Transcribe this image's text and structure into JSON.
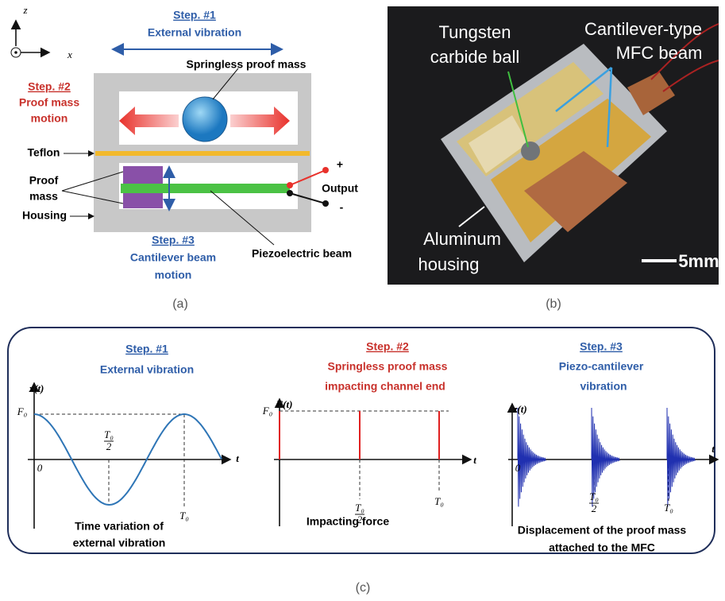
{
  "panel_a": {
    "axis_z": "z",
    "axis_x": "x",
    "step1": {
      "label": "Step. #1",
      "lines": [
        "External vibration"
      ]
    },
    "proof_mass_label": "Springless proof mass",
    "step2": {
      "label": "Step. #2",
      "lines": [
        "Proof mass",
        "motion"
      ]
    },
    "teflon": "Teflon",
    "proof_mass": [
      "Proof",
      "mass"
    ],
    "housing": "Housing",
    "output": "Output",
    "plus": "+",
    "minus": "-",
    "step3": {
      "label": "Step. #3",
      "lines": [
        "Cantilever beam",
        "motion"
      ]
    },
    "piezo_beam": "Piezoelectric beam",
    "caption": "(a)"
  },
  "panel_b": {
    "ball": [
      "Tungsten",
      "carbide ball"
    ],
    "beam": [
      "Cantilever-type",
      "MFC beam"
    ],
    "housing": [
      "Aluminum",
      "housing"
    ],
    "scale": "5mm",
    "caption": "(b)"
  },
  "panel_c": {
    "plot1": {
      "step": "Step. #1",
      "lines": [
        "External vibration"
      ],
      "ylabel": "x(t)",
      "f0": "F₀",
      "origin": "0",
      "half_num": "T₀",
      "half_den": "2",
      "t0": "T₀",
      "xlabel": "t",
      "caption": [
        "Time variation of",
        "external vibration"
      ]
    },
    "plot2": {
      "step": "Step. #2",
      "lines": [
        "Springless proof mass",
        "impacting channel end"
      ],
      "ylabel": "F(t)",
      "f0": "F₀",
      "half_num": "T₀",
      "half_den": "2",
      "t0": "T₀",
      "xlabel": "t",
      "caption": [
        "Impacting force"
      ]
    },
    "plot3": {
      "step": "Step. #3",
      "lines": [
        "Piezo-cantilever",
        "vibration"
      ],
      "ylabel": "z(t)",
      "origin": "0",
      "half_num": "T₀",
      "half_den": "2",
      "t0": "T₀",
      "xlabel": "t",
      "caption": [
        "Displacement of the proof mass",
        "attached to the MFC"
      ]
    },
    "caption": "(c)"
  }
}
